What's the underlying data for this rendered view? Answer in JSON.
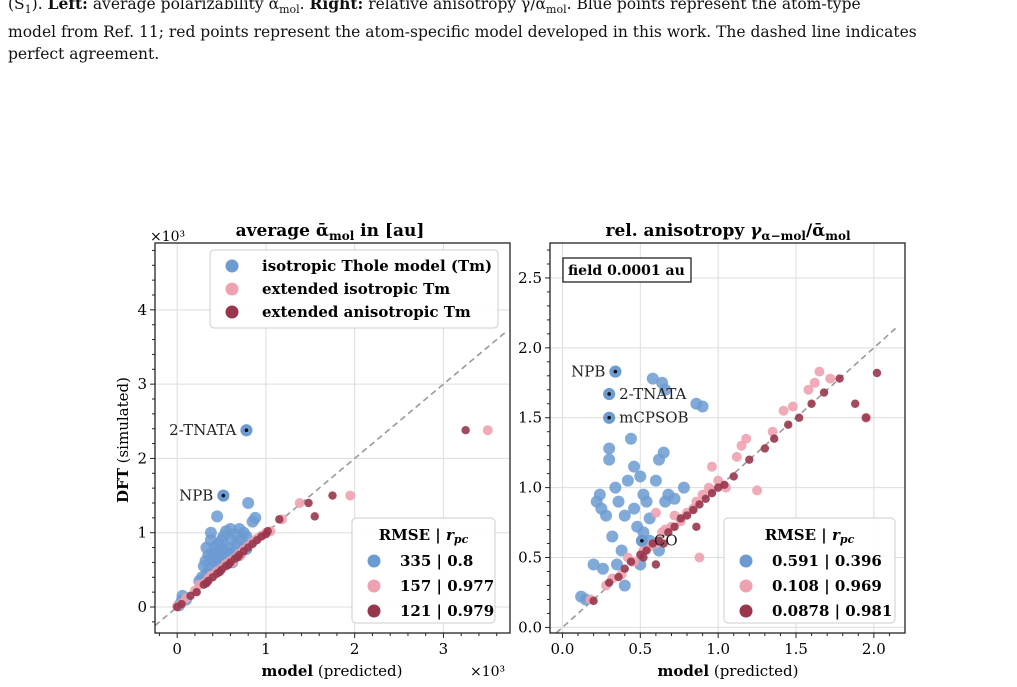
{
  "caption": {
    "line1_pre": "(S",
    "line1_sub": "1",
    "line1_mid": "). ",
    "left_label": "Left:",
    "left_text": " average polarizability ᾱ",
    "left_sub": "mol",
    "left_end": ". ",
    "right_label": "Right:",
    "right_text": " relative anisotropy γ/ᾱ",
    "right_sub": "mol",
    "right_end": ". Blue points represent the atom-type",
    "line2": "model from Ref. 11; red points represent the atom-specific model developed in this work. The dashed line indicates",
    "line3": "perfect agreement."
  },
  "colors": {
    "blue": "#6c9bd2",
    "pink": "#eea2b0",
    "dark": "#98364c",
    "dash": "#999999",
    "grid": "#dddddd"
  },
  "chart_data": [
    {
      "type": "scatter",
      "title_main": "average ",
      "title_symbol": "ᾱ",
      "title_sub": "mol",
      "title_end": " in [au]",
      "xlabel_bold": "model",
      "xlabel_rest": " (predicted)",
      "ylabel_bold": "DFT",
      "ylabel_rest": " (simulated)",
      "x_multiplier": "×10³",
      "y_multiplier": "×10³",
      "xlim": [
        -0.25,
        3.75
      ],
      "ylim": [
        -0.35,
        4.9
      ],
      "xticks": [
        0,
        1,
        2,
        3
      ],
      "yticks": [
        0,
        1,
        2,
        3,
        4
      ],
      "legend": [
        "isotropic Thole model (Tm)",
        "extended isotropic Tm",
        "extended anisotropic Tm"
      ],
      "stats_header": "RMSE | ",
      "stats_header_sym": "r",
      "stats_header_sub": "pc",
      "stats": [
        "335 | 0.8",
        "157 | 0.977",
        "121 | 0.979"
      ],
      "annotations": [
        {
          "text": "2-TNATA",
          "x": 0.78,
          "y": 2.38
        },
        {
          "text": "NPB",
          "x": 0.52,
          "y": 1.5
        }
      ],
      "series": [
        {
          "name": "isotropic Thole model (Tm)",
          "points": [
            [
              0.02,
              0.02
            ],
            [
              0.05,
              0.08
            ],
            [
              0.06,
              0.15
            ],
            [
              0.1,
              0.1
            ],
            [
              0.25,
              0.35
            ],
            [
              0.28,
              0.4
            ],
            [
              0.3,
              0.55
            ],
            [
              0.32,
              0.62
            ],
            [
              0.33,
              0.45
            ],
            [
              0.35,
              0.7
            ],
            [
              0.36,
              0.5
            ],
            [
              0.38,
              0.65
            ],
            [
              0.38,
              0.9
            ],
            [
              0.4,
              0.72
            ],
            [
              0.4,
              0.45
            ],
            [
              0.42,
              0.8
            ],
            [
              0.42,
              0.6
            ],
            [
              0.44,
              0.68
            ],
            [
              0.45,
              0.55
            ],
            [
              0.46,
              0.85
            ],
            [
              0.47,
              0.75
            ],
            [
              0.48,
              0.62
            ],
            [
              0.5,
              0.9
            ],
            [
              0.5,
              0.7
            ],
            [
              0.52,
              0.95
            ],
            [
              0.52,
              0.78
            ],
            [
              0.55,
              1.02
            ],
            [
              0.55,
              0.65
            ],
            [
              0.58,
              0.8
            ],
            [
              0.6,
              1.05
            ],
            [
              0.6,
              0.72
            ],
            [
              0.62,
              0.9
            ],
            [
              0.62,
              0.6
            ],
            [
              0.65,
              0.98
            ],
            [
              0.65,
              0.75
            ],
            [
              0.68,
              0.85
            ],
            [
              0.7,
              1.05
            ],
            [
              0.7,
              0.7
            ],
            [
              0.72,
              0.9
            ],
            [
              0.75,
              0.8
            ],
            [
              0.75,
              1.0
            ],
            [
              0.78,
              0.95
            ],
            [
              0.78,
              0.78
            ],
            [
              0.8,
              1.4
            ],
            [
              0.85,
              1.15
            ],
            [
              0.88,
              1.2
            ],
            [
              0.45,
              1.22
            ],
            [
              0.38,
              1.0
            ],
            [
              0.55,
              0.58
            ],
            [
              0.33,
              0.8
            ],
            [
              0.78,
              2.38
            ],
            [
              0.52,
              1.5
            ]
          ]
        },
        {
          "name": "extended isotropic Tm",
          "points": [
            [
              0.0,
              0.01
            ],
            [
              0.05,
              0.05
            ],
            [
              0.1,
              0.12
            ],
            [
              0.2,
              0.22
            ],
            [
              0.25,
              0.3
            ],
            [
              0.3,
              0.32
            ],
            [
              0.35,
              0.38
            ],
            [
              0.4,
              0.42
            ],
            [
              0.45,
              0.48
            ],
            [
              0.5,
              0.52
            ],
            [
              0.55,
              0.58
            ],
            [
              0.6,
              0.62
            ],
            [
              0.65,
              0.66
            ],
            [
              0.7,
              0.72
            ],
            [
              0.75,
              0.77
            ],
            [
              0.8,
              0.82
            ],
            [
              0.85,
              0.87
            ],
            [
              0.9,
              0.92
            ],
            [
              0.95,
              0.96
            ],
            [
              1.0,
              1.0
            ],
            [
              1.05,
              1.02
            ],
            [
              1.18,
              1.18
            ],
            [
              1.38,
              1.4
            ],
            [
              1.95,
              1.5
            ],
            [
              3.5,
              2.38
            ],
            [
              0.38,
              0.42
            ],
            [
              0.42,
              0.44
            ],
            [
              0.62,
              0.6
            ],
            [
              0.72,
              0.7
            ]
          ]
        },
        {
          "name": "extended anisotropic Tm",
          "points": [
            [
              0.0,
              0.0
            ],
            [
              0.05,
              0.04
            ],
            [
              0.15,
              0.15
            ],
            [
              0.22,
              0.2
            ],
            [
              0.3,
              0.3
            ],
            [
              0.35,
              0.35
            ],
            [
              0.4,
              0.4
            ],
            [
              0.45,
              0.45
            ],
            [
              0.5,
              0.5
            ],
            [
              0.55,
              0.55
            ],
            [
              0.6,
              0.6
            ],
            [
              0.65,
              0.65
            ],
            [
              0.7,
              0.7
            ],
            [
              0.75,
              0.75
            ],
            [
              0.8,
              0.8
            ],
            [
              0.85,
              0.85
            ],
            [
              0.9,
              0.9
            ],
            [
              0.95,
              0.95
            ],
            [
              1.0,
              0.98
            ],
            [
              1.02,
              1.02
            ],
            [
              1.15,
              1.18
            ],
            [
              1.48,
              1.4
            ],
            [
              1.55,
              1.22
            ],
            [
              1.75,
              1.5
            ],
            [
              3.25,
              2.38
            ],
            [
              0.33,
              0.32
            ],
            [
              0.48,
              0.47
            ],
            [
              0.58,
              0.57
            ],
            [
              0.68,
              0.67
            ]
          ]
        }
      ]
    },
    {
      "type": "scatter",
      "title_main": "rel. anisotropy ",
      "title_symbol": "γ",
      "title_sub": "α−mol",
      "title_slash": "/",
      "title_symbol2": "ᾱ",
      "title_sub2": "mol",
      "xlabel_bold": "model",
      "xlabel_rest": " (predicted)",
      "field_box": "field 0.0001 au",
      "xlim": [
        -0.08,
        2.2
      ],
      "ylim": [
        -0.04,
        2.75
      ],
      "xticks": [
        0.0,
        0.5,
        1.0,
        1.5,
        2.0
      ],
      "yticks": [
        0.0,
        0.5,
        1.0,
        1.5,
        2.0,
        2.5
      ],
      "stats_header": "RMSE | ",
      "stats_header_sym": "r",
      "stats_header_sub": "pc",
      "stats": [
        "0.591 | 0.396",
        "0.108 | 0.969",
        "0.0878 | 0.981"
      ],
      "annotations": [
        {
          "text": "NPB",
          "x": 0.34,
          "y": 1.83
        },
        {
          "text": "2-TNATA",
          "x": 0.3,
          "y": 1.67
        },
        {
          "text": "mCPSOB",
          "x": 0.3,
          "y": 1.5
        },
        {
          "text": "CO",
          "x": 0.51,
          "y": 0.62
        }
      ],
      "series": [
        {
          "name": "isotropic Thole model (Tm)",
          "points": [
            [
              0.12,
              0.22
            ],
            [
              0.15,
              0.2
            ],
            [
              0.2,
              0.45
            ],
            [
              0.22,
              0.9
            ],
            [
              0.24,
              0.95
            ],
            [
              0.25,
              0.85
            ],
            [
              0.26,
              0.42
            ],
            [
              0.28,
              0.8
            ],
            [
              0.3,
              1.2
            ],
            [
              0.3,
              1.28
            ],
            [
              0.32,
              0.65
            ],
            [
              0.34,
              1.0
            ],
            [
              0.35,
              0.45
            ],
            [
              0.36,
              0.9
            ],
            [
              0.38,
              0.55
            ],
            [
              0.4,
              0.8
            ],
            [
              0.42,
              1.05
            ],
            [
              0.44,
              1.35
            ],
            [
              0.46,
              0.85
            ],
            [
              0.48,
              0.72
            ],
            [
              0.5,
              1.08
            ],
            [
              0.5,
              0.45
            ],
            [
              0.52,
              0.68
            ],
            [
              0.54,
              0.9
            ],
            [
              0.56,
              0.78
            ],
            [
              0.58,
              1.78
            ],
            [
              0.6,
              1.05
            ],
            [
              0.62,
              1.2
            ],
            [
              0.62,
              0.55
            ],
            [
              0.64,
              1.75
            ],
            [
              0.65,
              1.25
            ],
            [
              0.66,
              1.7
            ],
            [
              0.68,
              0.95
            ],
            [
              0.72,
              0.92
            ],
            [
              0.78,
              1.0
            ],
            [
              0.86,
              1.6
            ],
            [
              0.9,
              1.58
            ],
            [
              0.4,
              0.3
            ],
            [
              0.46,
              1.15
            ],
            [
              0.52,
              0.95
            ],
            [
              0.56,
              0.62
            ],
            [
              0.66,
              0.9
            ],
            [
              0.34,
              1.83
            ],
            [
              0.3,
              1.67
            ],
            [
              0.3,
              1.5
            ]
          ]
        },
        {
          "name": "extended isotropic Tm",
          "points": [
            [
              0.18,
              0.2
            ],
            [
              0.28,
              0.3
            ],
            [
              0.32,
              0.35
            ],
            [
              0.38,
              0.38
            ],
            [
              0.42,
              0.5
            ],
            [
              0.46,
              0.47
            ],
            [
              0.52,
              0.55
            ],
            [
              0.56,
              0.58
            ],
            [
              0.6,
              0.6
            ],
            [
              0.64,
              0.68
            ],
            [
              0.66,
              0.7
            ],
            [
              0.7,
              0.72
            ],
            [
              0.72,
              0.8
            ],
            [
              0.76,
              0.76
            ],
            [
              0.8,
              0.82
            ],
            [
              0.84,
              0.85
            ],
            [
              0.86,
              0.9
            ],
            [
              0.9,
              0.95
            ],
            [
              0.94,
              1.0
            ],
            [
              0.96,
              0.98
            ],
            [
              1.0,
              1.05
            ],
            [
              1.05,
              1.0
            ],
            [
              1.12,
              1.22
            ],
            [
              1.15,
              1.3
            ],
            [
              1.18,
              1.35
            ],
            [
              1.25,
              0.98
            ],
            [
              1.35,
              1.4
            ],
            [
              1.42,
              1.55
            ],
            [
              1.48,
              1.58
            ],
            [
              1.58,
              1.7
            ],
            [
              1.62,
              1.75
            ],
            [
              1.65,
              1.83
            ],
            [
              1.72,
              1.78
            ],
            [
              1.95,
              1.5
            ],
            [
              0.6,
              0.82
            ],
            [
              0.88,
              0.5
            ],
            [
              0.96,
              1.15
            ]
          ]
        },
        {
          "name": "extended anisotropic Tm",
          "points": [
            [
              0.2,
              0.19
            ],
            [
              0.3,
              0.32
            ],
            [
              0.36,
              0.36
            ],
            [
              0.4,
              0.42
            ],
            [
              0.44,
              0.47
            ],
            [
              0.5,
              0.52
            ],
            [
              0.54,
              0.55
            ],
            [
              0.58,
              0.6
            ],
            [
              0.62,
              0.62
            ],
            [
              0.65,
              0.6
            ],
            [
              0.68,
              0.68
            ],
            [
              0.72,
              0.72
            ],
            [
              0.76,
              0.78
            ],
            [
              0.8,
              0.8
            ],
            [
              0.84,
              0.84
            ],
            [
              0.88,
              0.88
            ],
            [
              0.92,
              0.92
            ],
            [
              0.96,
              0.96
            ],
            [
              1.0,
              1.0
            ],
            [
              1.04,
              1.02
            ],
            [
              1.1,
              1.08
            ],
            [
              1.2,
              1.2
            ],
            [
              1.3,
              1.28
            ],
            [
              1.36,
              1.35
            ],
            [
              1.45,
              1.45
            ],
            [
              1.52,
              1.5
            ],
            [
              1.6,
              1.6
            ],
            [
              1.68,
              1.68
            ],
            [
              1.78,
              1.78
            ],
            [
              1.88,
              1.6
            ],
            [
              1.95,
              1.5
            ],
            [
              2.02,
              1.82
            ],
            [
              0.6,
              0.45
            ],
            [
              0.86,
              0.72
            ],
            [
              0.52,
              0.5
            ]
          ]
        }
      ]
    }
  ]
}
